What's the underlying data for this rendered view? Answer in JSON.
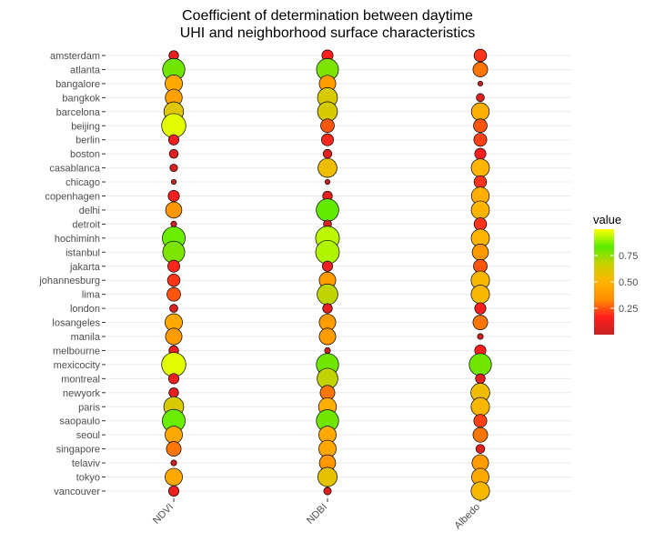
{
  "chart_data": {
    "type": "scatter",
    "title": "Coefficient of determination between daytime\nUHI and neighborhood surface characteristics",
    "categories_x": [
      "NDVI",
      "NDBI",
      "Albedo"
    ],
    "categories_y": [
      "amsterdam",
      "atlanta",
      "bangalore",
      "bangkok",
      "barcelona",
      "beijing",
      "berlin",
      "boston",
      "casablanca",
      "chicago",
      "copenhagen",
      "delhi",
      "detroit",
      "hochiminh",
      "istanbul",
      "jakarta",
      "johannesburg",
      "lima",
      "london",
      "losangeles",
      "manila",
      "melbourne",
      "mexicocity",
      "montreal",
      "newyork",
      "paris",
      "saopaulo",
      "seoul",
      "singapore",
      "telaviv",
      "tokyo",
      "vancouver"
    ],
    "series": [
      {
        "name": "NDVI",
        "values": [
          0.1,
          0.8,
          0.45,
          0.42,
          0.6,
          0.97,
          0.12,
          0.08,
          0.05,
          0.01,
          0.15,
          0.38,
          0.02,
          0.85,
          0.78,
          0.18,
          0.2,
          0.25,
          0.06,
          0.45,
          0.4,
          0.1,
          0.97,
          0.12,
          0.1,
          0.62,
          0.85,
          0.45,
          0.3,
          0.02,
          0.45,
          0.12
        ]
      },
      {
        "name": "NDBI",
        "values": [
          0.15,
          0.78,
          0.4,
          0.62,
          0.62,
          0.25,
          0.18,
          0.08,
          0.55,
          0.01,
          0.1,
          0.82,
          0.06,
          0.93,
          0.92,
          0.12,
          0.4,
          0.68,
          0.1,
          0.4,
          0.4,
          0.02,
          0.8,
          0.68,
          0.3,
          0.48,
          0.8,
          0.45,
          0.45,
          0.38,
          0.58,
          0.05
        ]
      },
      {
        "name": "Albedo",
        "values": [
          0.2,
          0.3,
          0.01,
          0.06,
          0.48,
          0.25,
          0.22,
          0.15,
          0.5,
          0.2,
          0.48,
          0.5,
          0.2,
          0.5,
          0.38,
          0.25,
          0.52,
          0.52,
          0.15,
          0.3,
          0.02,
          0.15,
          0.8,
          0.1,
          0.55,
          0.52,
          0.22,
          0.3,
          0.08,
          0.4,
          0.45,
          0.52
        ]
      }
    ],
    "legend": {
      "title": "value",
      "ticks": [
        0.25,
        0.5,
        0.75
      ],
      "tick_labels": [
        "0.25",
        "0.50",
        "0.75"
      ],
      "range": [
        0,
        1
      ],
      "placement": "right"
    },
    "colorscale": [
      "#c42321",
      "#ff1e1e",
      "#ff8c00",
      "#ffb400",
      "#c8d200",
      "#5aeb00",
      "#ffff00"
    ],
    "grid": true
  }
}
